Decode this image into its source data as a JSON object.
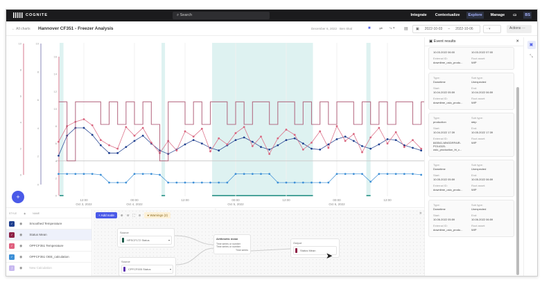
{
  "topbar": {
    "brand": "COGNITE",
    "search_placeholder": "Search",
    "nav": [
      "Integrate",
      "Contextualize",
      "Explore",
      "Manage"
    ],
    "active_nav": "Explore"
  },
  "header": {
    "back": "All charts",
    "title": "Hannover CF351 - Freezer Analysis",
    "meta": "December 6, 2022 · Ben Skal",
    "date_from": "2022-10-03",
    "date_to": "2022-10-06",
    "range_select": "-",
    "actions": "Actions ···"
  },
  "chart_data": {
    "type": "line",
    "axes": [
      {
        "ticks": [
          0,
          2,
          4,
          6,
          8,
          10
        ],
        "color": "#d77a8f"
      },
      {
        "ticks": [
          0,
          2,
          4,
          6,
          8,
          10
        ],
        "color": "#8a87b8"
      },
      {
        "ticks": [
          0,
          2,
          4,
          6,
          8,
          10,
          12,
          14,
          16
        ],
        "color": "#d77a8f"
      }
    ],
    "ylim": [
      0,
      16
    ],
    "x_ticks": [
      {
        "t": "2022-10-03T12:00",
        "l1": "12:00",
        "l2": "Oct 3, 2022"
      },
      {
        "t": "2022-10-04T00:00",
        "l1": "00:00",
        "l2": "Oct 4, 2022"
      },
      {
        "t": "2022-10-04T12:00",
        "l1": "12:00",
        "l2": ""
      },
      {
        "t": "2022-10-05T00:00",
        "l1": "00:00",
        "l2": "Oct 5, 2022"
      },
      {
        "t": "2022-10-05T12:00",
        "l1": "12:00",
        "l2": ""
      },
      {
        "t": "2022-10-06T00:00",
        "l1": "00:00",
        "l2": "Oct 6, 2022"
      },
      {
        "t": "2022-10-06T12:00",
        "l1": "12:00",
        "l2": ""
      }
    ],
    "event_bands": [
      [
        "2022-10-03T06:15",
        "2022-10-03T07:10"
      ],
      [
        "2022-10-04T06:25",
        "2022-10-04T07:15"
      ],
      [
        "2022-10-04T18:25",
        "2022-10-05T18:20"
      ],
      [
        "2022-10-06T07:00",
        "2022-10-06T08:00"
      ]
    ],
    "x_start": "2022-10-03T06:00",
    "x_step_hours": 2,
    "series": [
      {
        "name": "Smoothed Temperature",
        "color": "#1f3f8f",
        "marker": true,
        "values": [
          4.6,
          6.9,
          7.8,
          7.8,
          7.0,
          5.8,
          4.9,
          4.9,
          5.6,
          6.3,
          6.9,
          6.0,
          5.2,
          4.8,
          5.3,
          5.9,
          6.4,
          6.0,
          5.5,
          5.2,
          5.8,
          6.4,
          6.7,
          6.2,
          5.6,
          5.3,
          5.8,
          6.4,
          6.6,
          6.0,
          5.4,
          5.3,
          5.9,
          6.5,
          6.8,
          6.3,
          5.7,
          5.4,
          5.9,
          6.5,
          6.4,
          5.8,
          5.5,
          5.2
        ]
      },
      {
        "name": "OPFCF351 Temperature",
        "color": "#d9667f",
        "marker": true,
        "values": [
          6.2,
          8.0,
          8.5,
          8.8,
          8.1,
          6.4,
          5.8,
          5.4,
          7.9,
          6.9,
          7.8,
          6.1,
          4.9,
          6.3,
          5.2,
          7.4,
          6.8,
          7.7,
          5.1,
          6.6,
          5.9,
          7.2,
          7.9,
          5.7,
          6.8,
          4.8,
          6.6,
          7.6,
          7.0,
          5.3,
          6.1,
          7.4,
          5.5,
          8.0,
          6.3,
          7.1,
          5.0,
          6.7,
          7.8,
          6.0,
          7.3,
          5.6,
          6.4,
          5.4
        ]
      },
      {
        "name": "OPFCF351 OEE_calculation",
        "color": "#3d8fd6",
        "marker": true,
        "values": [
          2.5,
          2.5,
          2.5,
          2.5,
          2.5,
          2.4,
          1.5,
          1.5,
          1.5,
          2.5,
          2.5,
          2.5,
          2.4,
          1.5,
          1.5,
          1.5,
          1.5,
          1.5,
          1.5,
          1.5,
          1.5,
          2.5,
          2.5,
          2.5,
          2.5,
          2.5,
          1.5,
          1.5,
          1.5,
          1.5,
          1.5,
          1.5,
          1.5,
          2.5,
          2.5,
          2.5,
          2.5,
          1.6,
          2.5,
          2.5,
          2.5,
          2.5,
          2.5,
          2.4
        ]
      },
      {
        "name": "Status Mean",
        "color": "#a84d6a",
        "marker": false,
        "step": true,
        "values": [
          10.8,
          4,
          10.8,
          10.8,
          10.8,
          8.2,
          10.8,
          8.2,
          10.8,
          8.2,
          10.8,
          8.2,
          4,
          10.8,
          10.8,
          8.2,
          10.8,
          8.2,
          10.8,
          10.8,
          8.2,
          10.8,
          8.2,
          10.8,
          10.8,
          8.2,
          10.8,
          10.8,
          8.2,
          10.8,
          8.2,
          10.8,
          8.2,
          10.8,
          10.8,
          8.2,
          10.8,
          8.2,
          10.8,
          8.2,
          10.8,
          10.8,
          8.2,
          10.8
        ]
      }
    ],
    "baseline": 4
  },
  "series_list": {
    "headers": [
      "STYLE",
      "NAME"
    ],
    "items": [
      {
        "name": "Smoothed Temperature",
        "color": "#1f3f8f",
        "selected": false,
        "muted": false
      },
      {
        "name": "Status Mean",
        "color": "#8e2146",
        "selected": true,
        "muted": false
      },
      {
        "name": "OPFCF351 Temperature",
        "color": "#e0607e",
        "selected": false,
        "muted": false
      },
      {
        "name": "OPFCF351 OEE_calculation",
        "color": "#3d8fd6",
        "selected": false,
        "muted": false
      },
      {
        "name": "New Calculation",
        "color": "#c7b8ef",
        "selected": false,
        "muted": true
      }
    ]
  },
  "flow": {
    "add_node": "+ Add node",
    "warnings": "Warnings (2)",
    "source1": {
      "label": "Source",
      "value": "HPSCF172 Status",
      "color": "#1d5c4a"
    },
    "source2": {
      "label": "Source",
      "value": "CPFCF005 Status",
      "color": "#5b2fb0"
    },
    "mean": {
      "label": "Arithmetic mean",
      "in1": "Time series or number",
      "in2": "Time series or number",
      "out": "Time series"
    },
    "output": {
      "label": "Output",
      "value": "Status Mean",
      "color": "#8e2146"
    }
  },
  "events": {
    "title": "Event results",
    "cards": [
      {
        "start": "10.03.2022 06:00",
        "end": "10.03.2022 07:00",
        "ext": "downtime_oslo_produ...",
        "root": "WIP"
      },
      {
        "type": "Downtime",
        "sub": "Unexpected",
        "start": "10.04.2022 05:59",
        "end": "10.04.2022 06:59",
        "ext": "downtime_oslo_produ...",
        "root": "WIP"
      },
      {
        "type": "production",
        "sub": "step",
        "start": "10.04.2022 17:39",
        "end": "10.05.2022 17:39",
        "ext": "845541-MNGDRFAIR-PO14320-oslo_production_fri_c...",
        "root": "WIP"
      },
      {
        "type": "Downtime",
        "sub": "Unexpected",
        "start": "10.05.2022 05:59",
        "end": "10.05.2022 06:59",
        "ext": "downtime_oslo_produ...",
        "root": "WIP"
      },
      {
        "type": "Downtime",
        "sub": "Unexpected",
        "start": "10.06.2022 05:59",
        "end": "10.06.2022 06:59",
        "ext": "downtime_oslo_produ...",
        "root": "WIP"
      }
    ],
    "labels": {
      "type": "Type:",
      "sub": "Sub type:",
      "start": "Start:",
      "end": "End:",
      "ext": "External ID:",
      "root": "Root asset:"
    }
  }
}
